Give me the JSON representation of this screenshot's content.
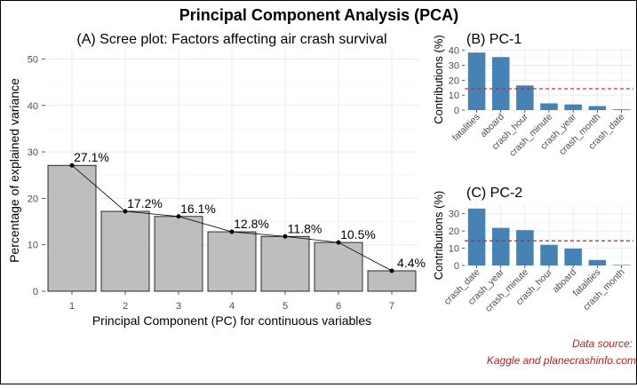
{
  "title": "Principal Component Analysis (PCA)",
  "source_line1": "Data source:",
  "source_line2": "Kaggle and planecrashinfo.com",
  "colors": {
    "bar_gray": "#bebebe",
    "bar_blue": "#4682b4",
    "ref_line": "#cc1f1f",
    "source_text": "#b22222",
    "grid": "#ebebeb"
  },
  "chart_data": [
    {
      "type": "bar",
      "title": "(A) Scree plot: Factors affecting air crash survival",
      "xlabel": "Principal Component (PC) for continuous variables",
      "ylabel": "Percentage of explained variance",
      "categories": [
        "1",
        "2",
        "3",
        "4",
        "5",
        "6",
        "7"
      ],
      "values": [
        27.1,
        17.2,
        16.1,
        12.8,
        11.8,
        10.5,
        4.4
      ],
      "data_labels": [
        "27.1%",
        "17.2%",
        "16.1%",
        "12.8%",
        "11.8%",
        "10.5%",
        "4.4%"
      ],
      "yticks": [
        0,
        10,
        20,
        30,
        40,
        50
      ],
      "ylim": [
        0,
        52
      ],
      "overlay": "line with points",
      "grid": true
    },
    {
      "type": "bar",
      "title": "(B) PC-1",
      "ylabel": "Contributions (%)",
      "categories": [
        "fatalities",
        "aboard",
        "crash_hour",
        "crash_minute",
        "crash_year",
        "crash_month",
        "crash_date"
      ],
      "values": [
        38.5,
        35.5,
        16.5,
        4.5,
        3.8,
        2.7,
        0.5
      ],
      "reference_line": 14.3,
      "yticks": [
        0,
        10,
        20,
        30,
        40
      ],
      "ylim": [
        0,
        41
      ],
      "grid": true
    },
    {
      "type": "bar",
      "title": "(C) PC-2",
      "ylabel": "Contributions (%)",
      "categories": [
        "crash_date",
        "crash_year",
        "crash_minute",
        "crash_hour",
        "aboard",
        "fatalities",
        "crash_month"
      ],
      "values": [
        33,
        21.8,
        20.5,
        12,
        9.8,
        3.2,
        0.3
      ],
      "reference_line": 14.3,
      "yticks": [
        0,
        10,
        20,
        30
      ],
      "ylim": [
        0,
        35
      ],
      "grid": true
    }
  ]
}
